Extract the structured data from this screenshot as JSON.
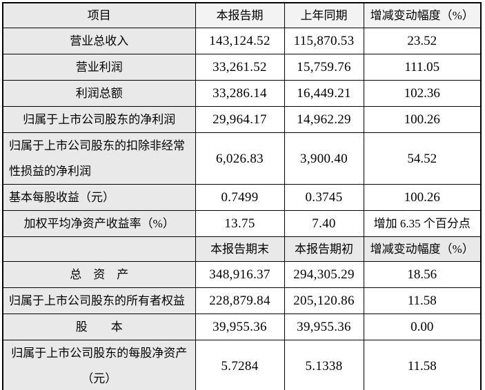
{
  "colors": {
    "table_border": "#000000",
    "shade_first_column": "#e9e9e9",
    "shade_header_row": "#f3f3f3",
    "cell_background": "#ffffff",
    "text": "#000000"
  },
  "table": {
    "header1": {
      "item": "项目",
      "current": "本报告期",
      "prior": "上年同期",
      "change": "增减变动幅度（%）"
    },
    "section1_rows": [
      {
        "label": "营业总收入",
        "align": "center",
        "tall": false,
        "current": "143,124.52",
        "prior": "115,870.53",
        "change": "23.52",
        "change_cjk": false
      },
      {
        "label": "营业利润",
        "align": "center",
        "tall": false,
        "current": "33,261.52",
        "prior": "15,759.76",
        "change": "111.05",
        "change_cjk": false
      },
      {
        "label": "利润总额",
        "align": "center",
        "tall": false,
        "current": "33,286.14",
        "prior": "16,449.21",
        "change": "102.36",
        "change_cjk": false
      },
      {
        "label": "归属于上市公司股东的净利润",
        "align": "center",
        "tall": false,
        "current": "29,964.17",
        "prior": "14,962.29",
        "change": "100.26",
        "change_cjk": false
      },
      {
        "label": "归属于上市公司股东的扣除非经常\n性损益的净利润",
        "align": "left",
        "tall": true,
        "current": "6,026.83",
        "prior": "3,900.40",
        "change": "54.52",
        "change_cjk": false
      },
      {
        "label": "基本每股收益（元）",
        "align": "left",
        "tall": false,
        "current": "0.7499",
        "prior": "0.3745",
        "change": "100.26",
        "change_cjk": false
      },
      {
        "label": "加权平均净资产收益率（%）",
        "align": "center",
        "tall": false,
        "current": "13.75",
        "prior": "7.40",
        "change": "增加 6.35 个百分点",
        "change_cjk": true
      }
    ],
    "header2": {
      "item": "",
      "current": "本报告期末",
      "prior": "本报告期初",
      "change": "增减变动幅度（%）"
    },
    "section2_rows": [
      {
        "label": "总　资　产",
        "align": "center",
        "tall": false,
        "current": "348,916.37",
        "prior": "294,305.29",
        "change": "18.56",
        "change_cjk": false
      },
      {
        "label": "归属于上市公司股东的所有者权益",
        "align": "left",
        "tall": false,
        "current": "228,879.84",
        "prior": "205,120.86",
        "change": "11.58",
        "change_cjk": false
      },
      {
        "label": "股　　本",
        "align": "center",
        "tall": false,
        "current": "39,955.36",
        "prior": "39,955.36",
        "change": "0.00",
        "change_cjk": false
      },
      {
        "label": "归属于上市公司股东的每股净资产\n（元）",
        "align": "center",
        "tall": true,
        "current": "5.7284",
        "prior": "5.1338",
        "change": "11.58",
        "change_cjk": false
      }
    ]
  }
}
